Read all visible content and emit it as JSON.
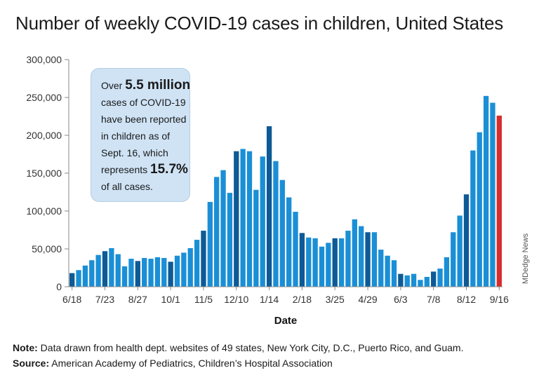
{
  "title": "Number of weekly COVID-19 cases in children, United States",
  "callout": {
    "line1_pre": "Over",
    "line1_big": "5.5 million",
    "line2": "cases of COVID-19",
    "line3": "have been reported",
    "line4": "in children as of",
    "line5": "Sept. 16, which",
    "line6_pre": "represents",
    "line6_big": "15.7%",
    "line7": "of all cases."
  },
  "credit": "MDedge News",
  "notes": {
    "note_label": "Note:",
    "note_text": "Data drawn from health dept. websites of 49 states, New York City, D.C., Puerto Rico, and Guam.",
    "source_label": "Source:",
    "source_text": "American Academy of Pediatrics, Children’s Hospital Association"
  },
  "colors": {
    "light": "#1a8fd6",
    "dark": "#0d5a96",
    "latest": "#d62e2e",
    "axis": "#888888"
  },
  "chart_data": {
    "type": "bar",
    "title": "Number of weekly COVID-19 cases in children, United States",
    "xlabel": "Date",
    "ylabel": "",
    "ylim": [
      0,
      300000
    ],
    "yticks": [
      0,
      50000,
      100000,
      150000,
      200000,
      250000,
      300000
    ],
    "ytick_labels": [
      "0",
      "50,000",
      "100,000",
      "150,000",
      "200,000",
      "250,000",
      "300,000"
    ],
    "x_tick_labels": [
      {
        "index": 0,
        "label": "6/18"
      },
      {
        "index": 5,
        "label": "7/23"
      },
      {
        "index": 10,
        "label": "8/27"
      },
      {
        "index": 15,
        "label": "10/1"
      },
      {
        "index": 20,
        "label": "11/5"
      },
      {
        "index": 25,
        "label": "12/10"
      },
      {
        "index": 30,
        "label": "1/14"
      },
      {
        "index": 35,
        "label": "2/18"
      },
      {
        "index": 40,
        "label": "3/25"
      },
      {
        "index": 45,
        "label": "4/29"
      },
      {
        "index": 50,
        "label": "6/3"
      },
      {
        "index": 55,
        "label": "7/8"
      },
      {
        "index": 60,
        "label": "8/12"
      },
      {
        "index": 65,
        "label": "9/16"
      }
    ],
    "values": [
      18000,
      22000,
      28000,
      35000,
      42000,
      47000,
      51000,
      43000,
      27000,
      37000,
      34000,
      38000,
      37000,
      39000,
      38000,
      33000,
      41000,
      45000,
      51000,
      62000,
      74000,
      112000,
      145000,
      154000,
      124000,
      179000,
      182000,
      179000,
      128000,
      172000,
      212000,
      166000,
      141000,
      118000,
      99000,
      71000,
      65000,
      64000,
      53000,
      58000,
      64000,
      64000,
      74000,
      89000,
      80000,
      72000,
      72000,
      49000,
      41000,
      35000,
      17000,
      15000,
      17000,
      9000,
      13000,
      20000,
      24000,
      39000,
      72000,
      94000,
      122000,
      180000,
      204000,
      252000,
      243000,
      226000
    ],
    "bar_tones": [
      "dark",
      "light",
      "light",
      "light",
      "light",
      "dark",
      "light",
      "light",
      "light",
      "light",
      "dark",
      "light",
      "light",
      "light",
      "light",
      "dark",
      "light",
      "light",
      "light",
      "light",
      "dark",
      "light",
      "light",
      "light",
      "light",
      "dark",
      "light",
      "light",
      "light",
      "light",
      "dark",
      "light",
      "light",
      "light",
      "light",
      "dark",
      "light",
      "light",
      "light",
      "light",
      "dark",
      "light",
      "light",
      "light",
      "light",
      "dark",
      "light",
      "light",
      "light",
      "light",
      "dark",
      "light",
      "light",
      "light",
      "light",
      "dark",
      "light",
      "light",
      "light",
      "light",
      "dark",
      "light",
      "light",
      "light",
      "light",
      "latest"
    ],
    "grid": false,
    "legend": "none"
  }
}
